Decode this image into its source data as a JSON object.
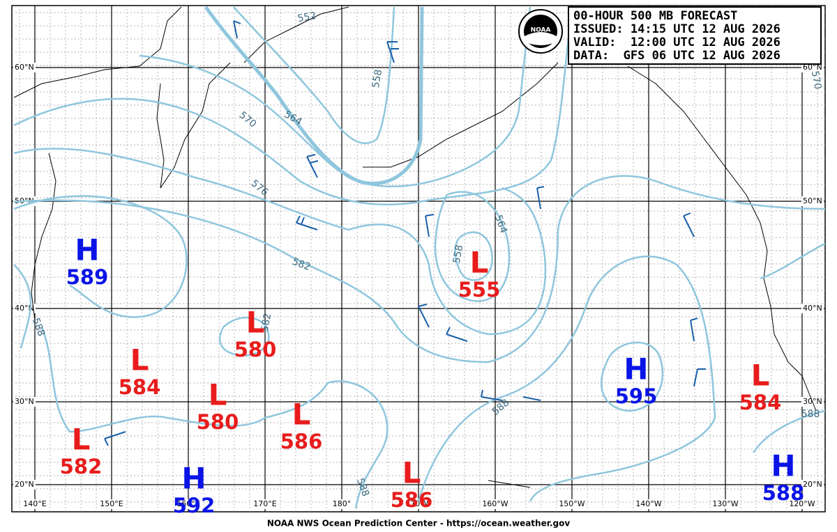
{
  "header": {
    "lines": [
      "00-HOUR 500 MB FORECAST",
      "ISSUED: 14:15 UTC 12 AUG 2026",
      "VALID:  12:00 UTC 12 AUG 2026",
      "DATA:  GFS 06 UTC 12 AUG 2026"
    ],
    "logo": "NOAA"
  },
  "footer": "NOAA NWS Ocean Prediction Center - https://ocean.weather.gov",
  "latitude_labels": [
    "60°N",
    "50°N",
    "40°N",
    "30°N",
    "20°N"
  ],
  "longitude_labels": [
    "140°E",
    "150°E",
    "160°E",
    "170°E",
    "180°",
    "170°W",
    "160°W",
    "150°W",
    "140°W",
    "130°W",
    "120°W"
  ],
  "centers": [
    {
      "type": "H",
      "value": 589
    },
    {
      "type": "L",
      "value": 555
    },
    {
      "type": "L",
      "value": 580
    },
    {
      "type": "L",
      "value": 584
    },
    {
      "type": "L",
      "value": 580
    },
    {
      "type": "L",
      "value": 586
    },
    {
      "type": "L",
      "value": 582
    },
    {
      "type": "H",
      "value": 592
    },
    {
      "type": "L",
      "value": 586
    },
    {
      "type": "H",
      "value": 595
    },
    {
      "type": "L",
      "value": 584
    },
    {
      "type": "H",
      "value": 588
    }
  ],
  "contour_labels": [
    552,
    558,
    564,
    570,
    576,
    582,
    558,
    564,
    582,
    588,
    588,
    570,
    588,
    588
  ]
}
